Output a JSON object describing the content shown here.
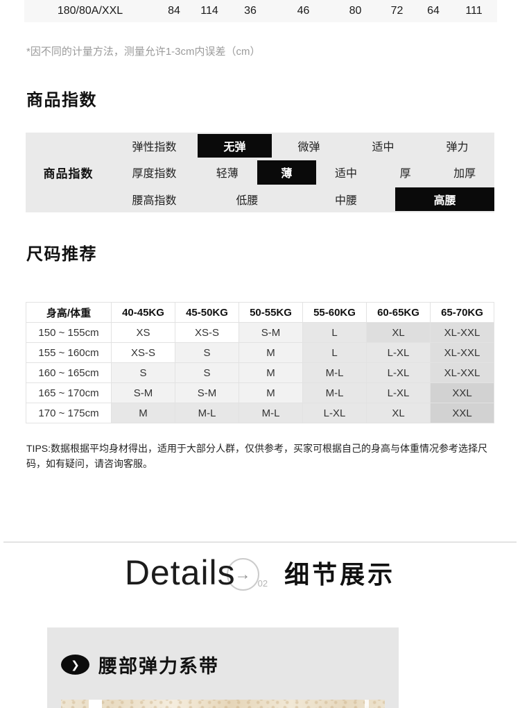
{
  "top_table_row": {
    "cells": [
      {
        "text": "180/80A/XXL",
        "width": 190
      },
      {
        "text": "84",
        "width": 52
      },
      {
        "text": "114",
        "width": 50
      },
      {
        "text": "36",
        "width": 68
      },
      {
        "text": "46",
        "width": 85
      },
      {
        "text": "80",
        "width": 65
      },
      {
        "text": "72",
        "width": 55
      },
      {
        "text": "64",
        "width": 50
      },
      {
        "text": "111",
        "width": 67
      }
    ]
  },
  "measure_note": "*因不同的计量方法，测量允许1-3cm内误差（cm）",
  "product_index": {
    "heading": "商品指数",
    "row_header": "商品指数",
    "selected_bg": "#0a0a0a",
    "panel_bg": "#eaeaea",
    "rows": [
      {
        "label": "弹性指数",
        "options": [
          {
            "text": "无弹",
            "selected": true
          },
          {
            "text": "微弹",
            "selected": false
          },
          {
            "text": "适中",
            "selected": false
          },
          {
            "text": "弹力",
            "selected": false
          }
        ]
      },
      {
        "label": "厚度指数",
        "options": [
          {
            "text": "轻薄",
            "selected": false
          },
          {
            "text": "薄",
            "selected": true
          },
          {
            "text": "适中",
            "selected": false
          },
          {
            "text": "厚",
            "selected": false
          },
          {
            "text": "加厚",
            "selected": false
          }
        ]
      },
      {
        "label": "腰高指数",
        "options": [
          {
            "text": "低腰",
            "selected": false
          },
          {
            "text": "中腰",
            "selected": false
          },
          {
            "text": "高腰",
            "selected": true
          }
        ]
      }
    ]
  },
  "size_recommend": {
    "heading": "尺码推荐",
    "columns": [
      "身高/体重",
      "40-45KG",
      "45-50KG",
      "50-55KG",
      "55-60KG",
      "60-65KG",
      "65-70KG"
    ],
    "shade_colors": [
      "#ffffff",
      "#f2f2f2",
      "#e7e7e7",
      "#dedede",
      "#d2d2d2"
    ],
    "rows": [
      {
        "height": "150 ~ 155cm",
        "cells": [
          {
            "text": "XS",
            "shade": 0
          },
          {
            "text": "XS-S",
            "shade": 0
          },
          {
            "text": "S-M",
            "shade": 1
          },
          {
            "text": "L",
            "shade": 2
          },
          {
            "text": "XL",
            "shade": 3
          },
          {
            "text": "XL-XXL",
            "shade": 3
          }
        ]
      },
      {
        "height": "155 ~ 160cm",
        "cells": [
          {
            "text": "XS-S",
            "shade": 0
          },
          {
            "text": "S",
            "shade": 1
          },
          {
            "text": "M",
            "shade": 1
          },
          {
            "text": "L",
            "shade": 2
          },
          {
            "text": "L-XL",
            "shade": 2
          },
          {
            "text": "XL-XXL",
            "shade": 3
          }
        ]
      },
      {
        "height": "160 ~ 165cm",
        "cells": [
          {
            "text": "S",
            "shade": 1
          },
          {
            "text": "S",
            "shade": 1
          },
          {
            "text": "M",
            "shade": 1
          },
          {
            "text": "M-L",
            "shade": 2
          },
          {
            "text": "L-XL",
            "shade": 2
          },
          {
            "text": "XL-XXL",
            "shade": 3
          }
        ]
      },
      {
        "height": "165 ~ 170cm",
        "cells": [
          {
            "text": "S-M",
            "shade": 1
          },
          {
            "text": "S-M",
            "shade": 1
          },
          {
            "text": "M",
            "shade": 1
          },
          {
            "text": "M-L",
            "shade": 2
          },
          {
            "text": "L-XL",
            "shade": 2
          },
          {
            "text": "XXL",
            "shade": 4
          }
        ]
      },
      {
        "height": "170 ~ 175cm",
        "cells": [
          {
            "text": "M",
            "shade": 2
          },
          {
            "text": "M-L",
            "shade": 2
          },
          {
            "text": "M-L",
            "shade": 2
          },
          {
            "text": "L-XL",
            "shade": 2
          },
          {
            "text": "XL",
            "shade": 2
          },
          {
            "text": "XXL",
            "shade": 4
          }
        ]
      }
    ],
    "tips": "TIPS:数据根据平均身材得出，适用于大部分人群，仅供参考，买家可根据自己的身高与体重情况参考选择尺码，如有疑问，请咨询客服。"
  },
  "details_header": {
    "en": "Details",
    "arrow": "→",
    "number": "02",
    "zh": "细节展示"
  },
  "detail_feature": {
    "chevron": "❯",
    "label": "腰部弹力系带"
  }
}
